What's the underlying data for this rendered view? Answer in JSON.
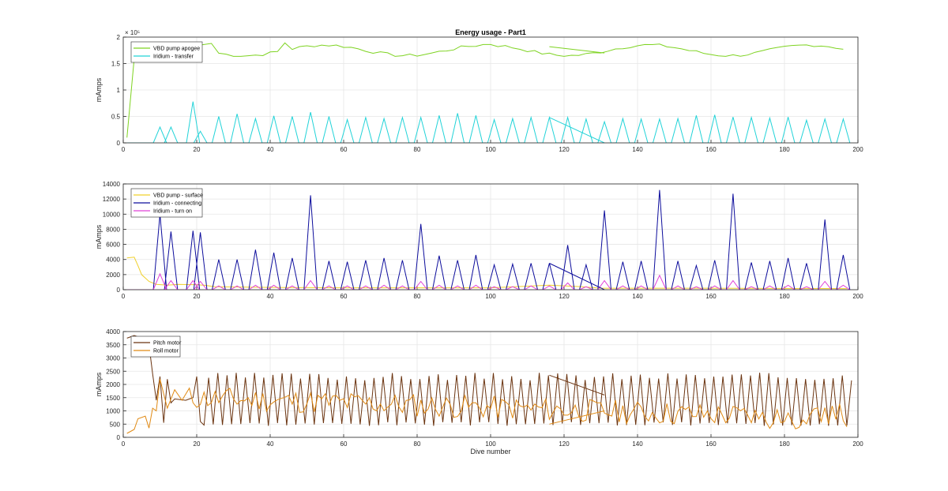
{
  "chart_data": [
    {
      "type": "line",
      "title": "Energy usage - Part1",
      "xlabel": "",
      "ylabel": "mAmps",
      "xlim": [
        0,
        200
      ],
      "ylim": [
        0,
        200000
      ],
      "xticks": [
        "0",
        "20",
        "40",
        "60",
        "80",
        "100",
        "120",
        "140",
        "160",
        "180",
        "200"
      ],
      "yticks": [
        "0",
        "0.5",
        "1",
        "1.5",
        "2"
      ],
      "exponent_label": "× 10⁵",
      "grid": true,
      "legend_position": "top-left",
      "series": [
        {
          "name": "VBD pump apogee",
          "color": "#7ed321"
        },
        {
          "name": "Iridium - transfer",
          "color": "#22d3d8"
        }
      ]
    },
    {
      "type": "line",
      "title": "",
      "xlabel": "",
      "ylabel": "mAmps",
      "xlim": [
        0,
        200
      ],
      "ylim": [
        0,
        14000
      ],
      "xticks": [
        "0",
        "20",
        "40",
        "60",
        "80",
        "100",
        "120",
        "140",
        "160",
        "180",
        "200"
      ],
      "yticks": [
        "0",
        "2000",
        "4000",
        "6000",
        "8000",
        "10000",
        "12000",
        "14000"
      ],
      "grid": true,
      "legend_position": "top-left",
      "series": [
        {
          "name": "VBD pump - surface",
          "color": "#f0d02a"
        },
        {
          "name": "Iridium - connecting",
          "color": "#0d0d9c"
        },
        {
          "name": "Iridium - turn on",
          "color": "#e040d8"
        }
      ]
    },
    {
      "type": "line",
      "title": "",
      "xlabel": "Dive number",
      "ylabel": "mAmps",
      "xlim": [
        0,
        200
      ],
      "ylim": [
        0,
        4000
      ],
      "xticks": [
        "0",
        "20",
        "40",
        "60",
        "80",
        "100",
        "120",
        "140",
        "160",
        "180",
        "200"
      ],
      "yticks": [
        "0",
        "500",
        "1000",
        "1500",
        "2000",
        "2500",
        "3000",
        "3500",
        "4000"
      ],
      "grid": true,
      "legend_position": "top-left",
      "series": [
        {
          "name": "Pitch motor",
          "color": "#6b3410"
        },
        {
          "name": "Roll motor",
          "color": "#e08a14"
        }
      ]
    }
  ]
}
